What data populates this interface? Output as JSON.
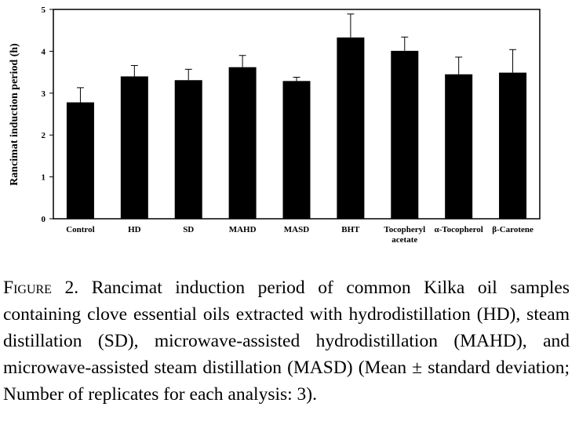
{
  "chart_data": {
    "type": "bar",
    "categories": [
      "Control",
      "HD",
      "SD",
      "MAHD",
      "MASD",
      "BHT",
      "Tocopheryl acetate",
      "α-Tocopherol",
      "β-Carotene"
    ],
    "category_lines": [
      [
        "Control"
      ],
      [
        "HD"
      ],
      [
        "SD"
      ],
      [
        "MAHD"
      ],
      [
        "MASD"
      ],
      [
        "BHT"
      ],
      [
        "Tocopheryl",
        "acetate"
      ],
      [
        "α-Tocopherol"
      ],
      [
        "β-Carotene"
      ]
    ],
    "values": [
      2.78,
      3.4,
      3.31,
      3.62,
      3.29,
      4.33,
      4.01,
      3.45,
      3.49
    ],
    "errors": [
      0.35,
      0.26,
      0.26,
      0.28,
      0.09,
      0.56,
      0.33,
      0.41,
      0.55
    ],
    "title": "",
    "xlabel": "",
    "ylabel": "Rancimat induction period (h)",
    "ylim": [
      0,
      5
    ],
    "yticks": [
      "0",
      "1",
      "2",
      "3",
      "4",
      "5"
    ],
    "grid": false,
    "bar_color": "#000000"
  },
  "caption": {
    "label": "Figure",
    "number": " 2.",
    "text": " Rancimat induction period of common Kilka oil samples containing clove essential oils extracted with hydrodistillation (HD), steam distillation (SD), microwave-assisted hydrodistillation (MAHD), and microwave-assisted steam distillation (MASD) (Mean ± standard deviation; Number of replicates for each analysis: 3)."
  }
}
